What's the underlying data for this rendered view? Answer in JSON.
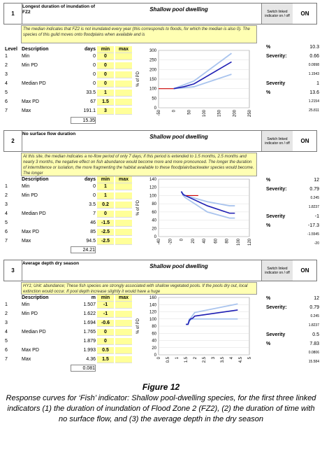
{
  "panels": [
    {
      "num": "1",
      "indicator": "Longest duration of inundation of FZ2",
      "habitat": "Shallow pool dwelling",
      "switch": "Switch linked indicator on / off",
      "on": "ON",
      "description": "The median indicates that FZ2 is not inundated every year (this corresponds to floods, for which the median is also 0). The species of this guild moves onto floodplains when available and is",
      "level_label": "Level",
      "desc_label": "Description",
      "unit_label": "days",
      "min_label": "min",
      "max_label": "max",
      "rows": [
        {
          "lvl": "1",
          "desc": "Min",
          "val": "0",
          "min": "0",
          "max": ""
        },
        {
          "lvl": "2",
          "desc": "Min PD",
          "val": "0",
          "min": "0",
          "max": ""
        },
        {
          "lvl": "3",
          "desc": "",
          "val": "0",
          "min": "0",
          "max": ""
        },
        {
          "lvl": "4",
          "desc": "Median PD",
          "val": "0",
          "min": "0",
          "max": ""
        },
        {
          "lvl": "5",
          "desc": "",
          "val": "33.5",
          "min": "1",
          "max": ""
        },
        {
          "lvl": "6",
          "desc": "Max PD",
          "val": "67",
          "min": "1.5",
          "max": ""
        },
        {
          "lvl": "7",
          "desc": "Max",
          "val": "191.1",
          "min": "3",
          "max": ""
        }
      ],
      "total": "15.35",
      "stats": [
        {
          "label": "%",
          "value": "10.3"
        },
        {
          "label": "Severity:",
          "value": "0.66"
        },
        {
          "label": "",
          "value": "0.0998",
          "small": true
        },
        {
          "label": "",
          "value": "1.1543",
          "small": true
        },
        {
          "label": "Severity",
          "value": "1"
        },
        {
          "label": "%",
          "value": "13.6"
        },
        {
          "label": "",
          "value": "1.2154",
          "small": true
        },
        {
          "label": "",
          "value": "25.811",
          "small": true
        }
      ]
    },
    {
      "num": "2",
      "indicator": "No surface flow duration",
      "habitat": "Shallow pool dwelling",
      "switch": "Switch linked indicator on / off",
      "on": "ON",
      "description": "At this site, the median indicates a no-flow period of only 7 days; if this period is extended to 1.5 months, 2.5 months and nearly 3 months, the negative effect on fish abundance would become more and more pronounced. The longer the duration of intermittence or isolation, the more fragmenting the habitat available to these floodplain/backwater species would become. The longer",
      "desc_label": "Description",
      "unit_label": "days",
      "min_label": "min",
      "max_label": "max",
      "rows": [
        {
          "lvl": "1",
          "desc": "Min",
          "val": "0",
          "min": "1",
          "max": ""
        },
        {
          "lvl": "2",
          "desc": "Min PD",
          "val": "0",
          "min": "1",
          "max": ""
        },
        {
          "lvl": "3",
          "desc": "",
          "val": "3.5",
          "min": "0.2",
          "max": ""
        },
        {
          "lvl": "4",
          "desc": "Median PD",
          "val": "7",
          "min": "0",
          "max": ""
        },
        {
          "lvl": "5",
          "desc": "",
          "val": "46",
          "min": "-1.5",
          "max": ""
        },
        {
          "lvl": "6",
          "desc": "Max PD",
          "val": "85",
          "min": "-2.5",
          "max": ""
        },
        {
          "lvl": "7",
          "desc": "Max",
          "val": "94.5",
          "min": "-2.5",
          "max": ""
        }
      ],
      "total": "24.21",
      "stats": [
        {
          "label": "%",
          "value": "12"
        },
        {
          "label": "Severity:",
          "value": "0.79"
        },
        {
          "label": "",
          "value": "0.245",
          "small": true
        },
        {
          "label": "",
          "value": "1.8237",
          "small": true
        },
        {
          "label": "Severity",
          "value": "-1"
        },
        {
          "label": "%",
          "value": "-17.3"
        },
        {
          "label": "",
          "value": "-1.5545",
          "small": true
        },
        {
          "label": "",
          "value": "-20",
          "small": true
        }
      ]
    },
    {
      "num": "3",
      "indicator": "Average depth dry season",
      "habitat": "Shallow pool dwelling",
      "switch": "Switch linked indicator on / off",
      "on": "ON",
      "description": "HY1; Unit: abundance; These fish species are strongly associated with shallow vegetated pools. If the pools dry out, local extinction would occur. If pool depth increase slightly it would have a huge",
      "desc_label": "Description",
      "unit_label": "m",
      "min_label": "min",
      "max_label": "max",
      "rows": [
        {
          "lvl": "1",
          "desc": "Min",
          "val": "1.507",
          "min": "-1",
          "max": ""
        },
        {
          "lvl": "2",
          "desc": "Min PD",
          "val": "1.622",
          "min": "-1",
          "max": ""
        },
        {
          "lvl": "3",
          "desc": "",
          "val": "1.694",
          "min": "-0.6",
          "max": ""
        },
        {
          "lvl": "4",
          "desc": "Median PD",
          "val": "1.765",
          "min": "0",
          "max": ""
        },
        {
          "lvl": "5",
          "desc": "",
          "val": "1.879",
          "min": "0",
          "max": ""
        },
        {
          "lvl": "6",
          "desc": "Max PD",
          "val": "1.993",
          "min": "0.5",
          "max": ""
        },
        {
          "lvl": "7",
          "desc": "Max",
          "val": "4.36",
          "min": "1.5",
          "max": ""
        }
      ],
      "total": "0.081",
      "stats": [
        {
          "label": "%",
          "value": "12"
        },
        {
          "label": "Severity:",
          "value": "0.79"
        },
        {
          "label": "",
          "value": "0.245",
          "small": true
        },
        {
          "label": "",
          "value": "1.8237",
          "small": true
        },
        {
          "label": "Severity",
          "value": "0.5"
        },
        {
          "label": "%",
          "value": "7.83"
        },
        {
          "label": "",
          "value": "0.0806",
          "small": true
        },
        {
          "label": "",
          "value": "15.584",
          "small": true
        }
      ]
    }
  ],
  "figure": {
    "title": "Figure 12",
    "caption": "Response curves for ‘Fish’ indicator: Shallow pool-dwelling species, for the first three linked indicators (1) the duration of inundation of Flood Zone 2 (FZ2), (2) the duration of time with no surface flow, and (3) the average depth in the dry season"
  },
  "chart_data": [
    {
      "type": "line",
      "ylabel": "% of PD",
      "ylim": [
        0,
        300
      ],
      "yticks": [
        0,
        50,
        100,
        150,
        200,
        250,
        300
      ],
      "xticks": [
        -50,
        0,
        50,
        100,
        150,
        200,
        250
      ],
      "xlim": [
        -50,
        250
      ],
      "colors": {
        "main": "#1f1fb4",
        "band": "#a9c4ee",
        "ref": "#cc0000"
      },
      "series": [
        {
          "role": "upper",
          "x": [
            0,
            67,
            191.1
          ],
          "y": [
            100,
            140,
            285
          ]
        },
        {
          "role": "main",
          "x": [
            0,
            33.5,
            67,
            191.1
          ],
          "y": [
            100,
            110,
            125,
            240
          ]
        },
        {
          "role": "lower",
          "x": [
            0,
            67,
            191.1
          ],
          "y": [
            100,
            110,
            175
          ]
        },
        {
          "role": "ref",
          "x": [
            -50,
            0
          ],
          "y": [
            100,
            100
          ]
        }
      ]
    },
    {
      "type": "line",
      "ylabel": "% of PD",
      "ylim": [
        0,
        140
      ],
      "yticks": [
        0,
        20,
        40,
        60,
        80,
        100,
        120,
        140
      ],
      "xticks": [
        -40,
        -20,
        0,
        20,
        40,
        60,
        80,
        100,
        120
      ],
      "xlim": [
        -40,
        120
      ],
      "colors": {
        "main": "#1f1fb4",
        "band": "#a9c4ee",
        "ref": "#cc0000"
      },
      "series": [
        {
          "role": "upper",
          "x": [
            0,
            3.5,
            7,
            46,
            85,
            94.5
          ],
          "y": [
            110,
            104,
            100,
            85,
            75,
            75
          ]
        },
        {
          "role": "main",
          "x": [
            0,
            3.5,
            7,
            46,
            85,
            94.5
          ],
          "y": [
            110,
            102,
            100,
            75,
            57,
            57
          ]
        },
        {
          "role": "lower",
          "x": [
            0,
            3.5,
            7,
            46,
            85,
            94.5
          ],
          "y": [
            110,
            100,
            95,
            60,
            45,
            45
          ]
        },
        {
          "role": "ref",
          "x": [
            7,
            30
          ],
          "y": [
            100,
            100
          ]
        }
      ]
    },
    {
      "type": "line",
      "ylabel": "% of PD",
      "ylim": [
        0,
        160
      ],
      "yticks": [
        0,
        20,
        40,
        60,
        80,
        100,
        120,
        140,
        160
      ],
      "xticks": [
        0,
        0.5,
        1,
        1.5,
        2,
        2.5,
        3,
        3.5,
        4,
        4.5,
        5
      ],
      "xlim": [
        0,
        5
      ],
      "colors": {
        "main": "#1f1fb4",
        "band": "#a9c4ee",
        "ref": "#cc0000"
      },
      "series": [
        {
          "role": "upper",
          "x": [
            1.507,
            1.622,
            1.694,
            1.765,
            1.879,
            1.993,
            4.36
          ],
          "y": [
            85,
            85,
            100,
            102,
            110,
            118,
            142
          ]
        },
        {
          "role": "main",
          "x": [
            1.507,
            1.622,
            1.694,
            1.765,
            1.879,
            1.993,
            4.36
          ],
          "y": [
            85,
            85,
            96,
            100,
            102,
            108,
            125
          ]
        },
        {
          "role": "lower",
          "x": [
            1.507,
            1.622,
            1.694,
            1.765,
            1.879,
            1.993,
            4.36
          ],
          "y": [
            85,
            85,
            93,
            98,
            100,
            100,
            100
          ]
        }
      ]
    }
  ]
}
